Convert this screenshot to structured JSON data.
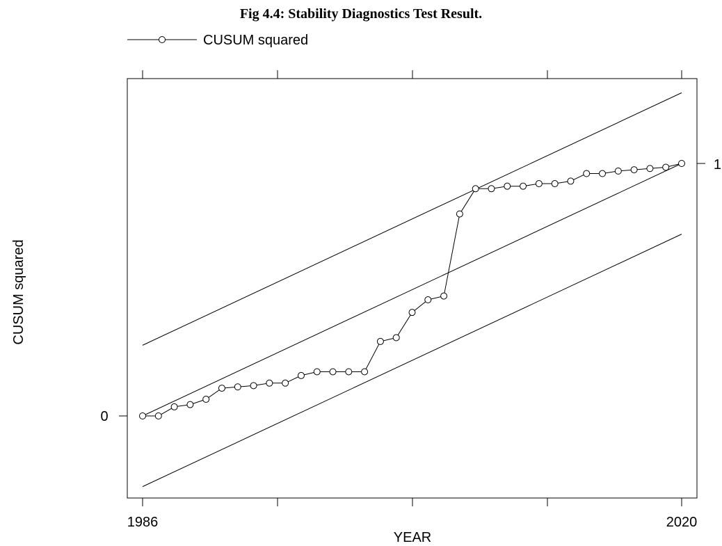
{
  "chart_data": {
    "type": "line",
    "title": "Fig 4.4: Stability Diagnostics Test Result.",
    "xlabel": "YEAR",
    "ylabel": "CUSUM squared",
    "x_tick_labels": [
      "1986",
      "2020"
    ],
    "y_tick_labels": [
      "0",
      "1"
    ],
    "xlim": [
      1985,
      2021
    ],
    "ylim": [
      -0.28,
      1.3
    ],
    "grid": false,
    "legend_position": "top-left",
    "series": [
      {
        "name": "CUSUM squared",
        "marker": "circle",
        "color": "#000000",
        "x": [
          1986,
          1987,
          1988,
          1989,
          1990,
          1991,
          1992,
          1993,
          1994,
          1995,
          1996,
          1997,
          1998,
          1999,
          2000,
          2001,
          2002,
          2003,
          2004,
          2005,
          2006,
          2007,
          2008,
          2009,
          2010,
          2011,
          2012,
          2013,
          2014,
          2015,
          2016,
          2017,
          2018,
          2019,
          2020
        ],
        "y": [
          0.0,
          0.0,
          0.036,
          0.045,
          0.066,
          0.11,
          0.115,
          0.12,
          0.13,
          0.13,
          0.16,
          0.175,
          0.175,
          0.175,
          0.175,
          0.295,
          0.31,
          0.41,
          0.46,
          0.475,
          0.8,
          0.9,
          0.9,
          0.91,
          0.91,
          0.92,
          0.92,
          0.93,
          0.96,
          0.96,
          0.97,
          0.975,
          0.98,
          0.985,
          1.0
        ]
      },
      {
        "name": "",
        "style": "line",
        "color": "#000000",
        "x": [
          1986,
          2020
        ],
        "y": [
          0.0,
          1.0
        ]
      },
      {
        "name": "",
        "style": "line",
        "color": "#000000",
        "x": [
          1986,
          2020
        ],
        "y": [
          0.28,
          1.28
        ]
      },
      {
        "name": "",
        "style": "line",
        "color": "#000000",
        "x": [
          1986,
          2020
        ],
        "y": [
          -0.28,
          0.72
        ]
      }
    ]
  }
}
